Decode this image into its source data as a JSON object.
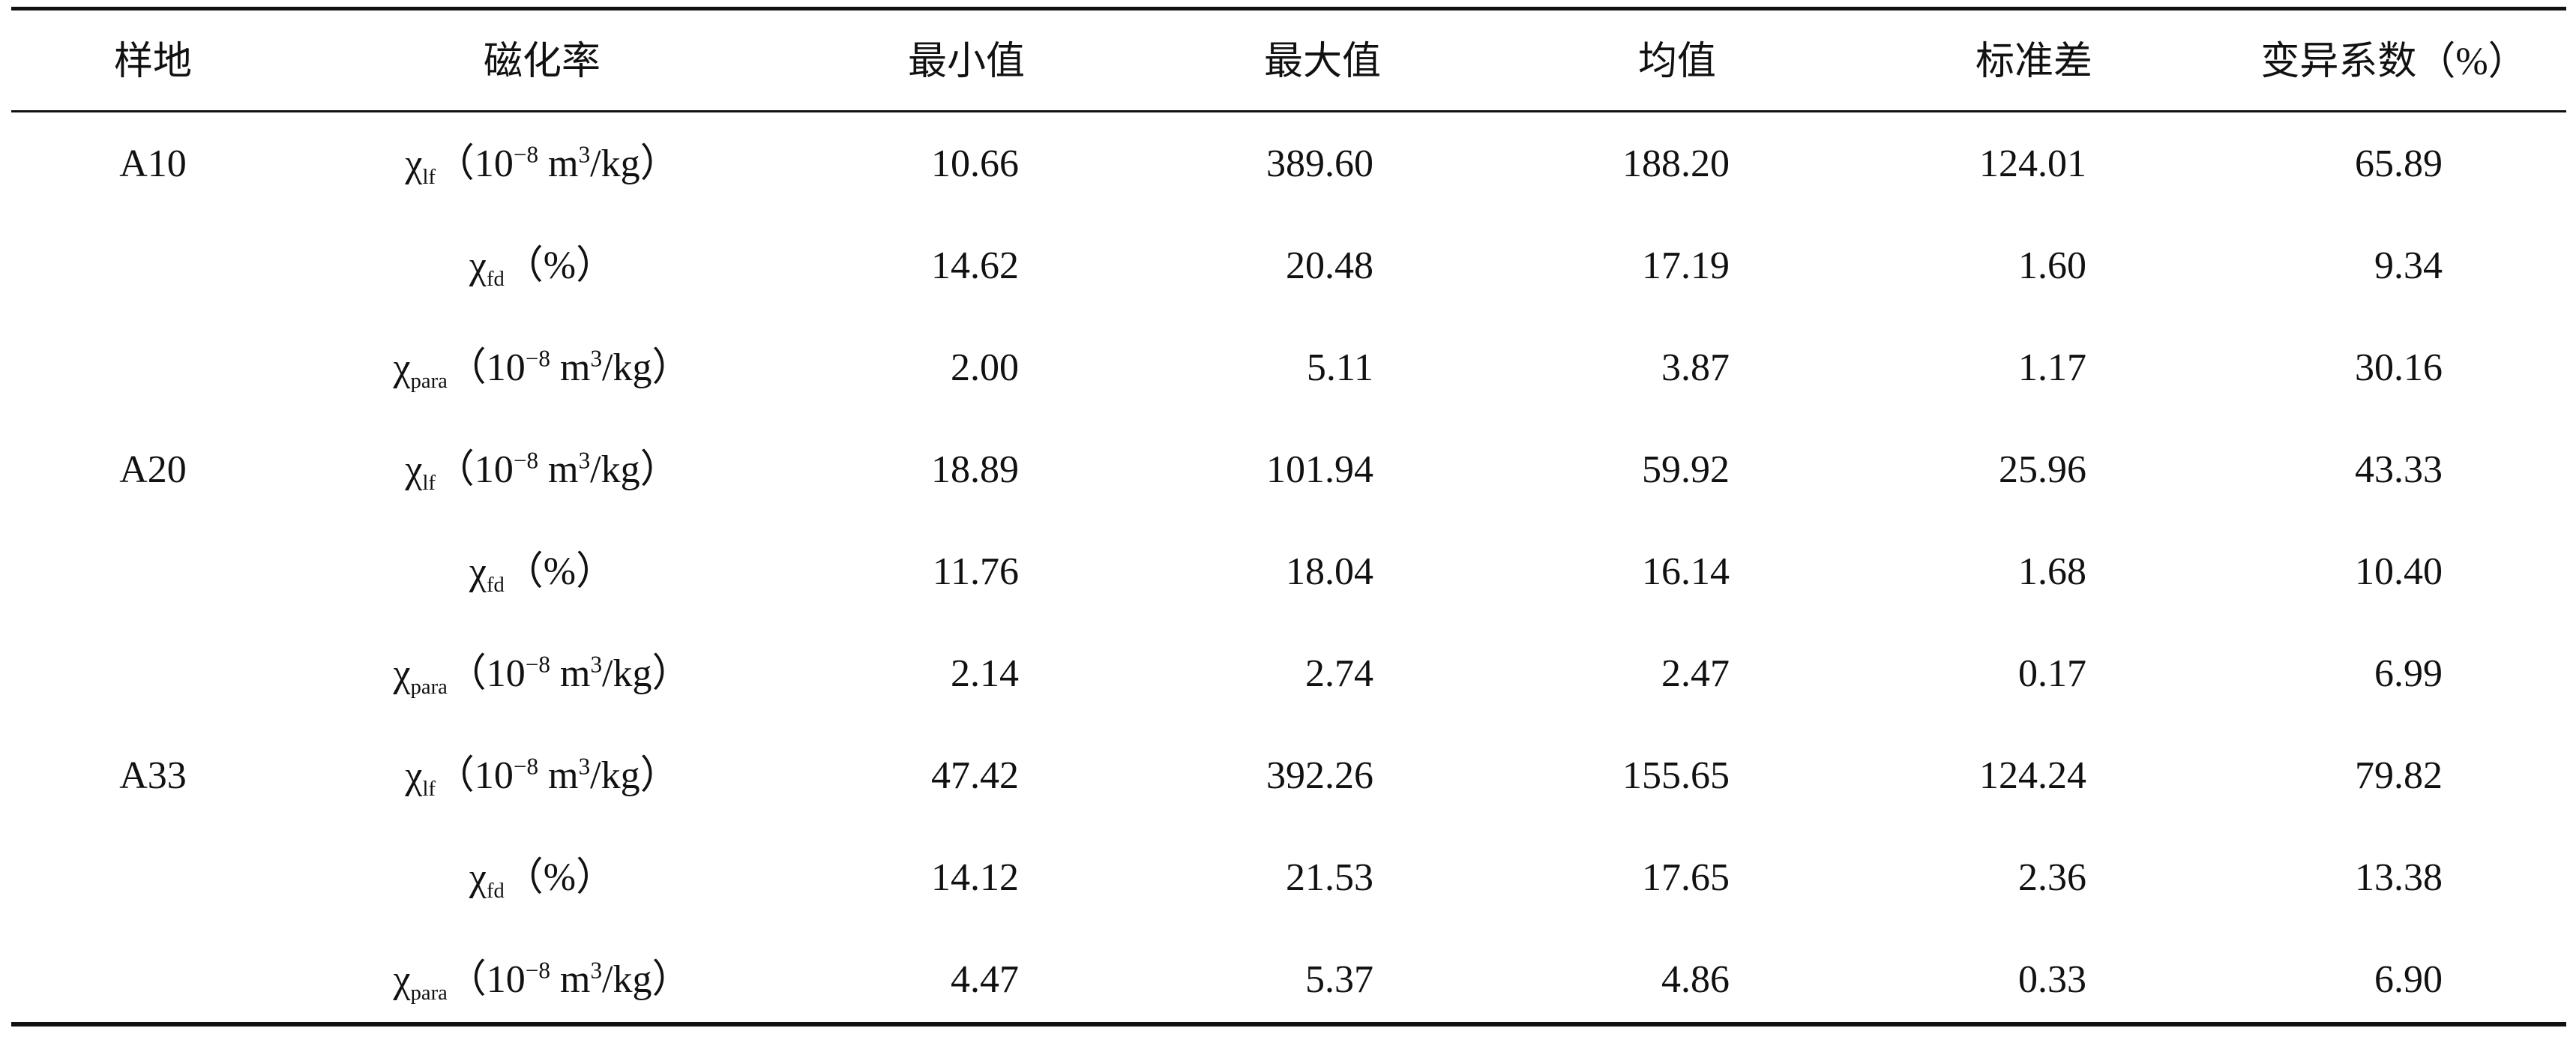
{
  "table": {
    "header": [
      "样地",
      "磁化率",
      "最小值",
      "最大值",
      "均值",
      "标准差",
      "变异系数（%）"
    ],
    "groups": [
      {
        "site": "A10",
        "rows": [
          {
            "susceptibility": {
              "symbol": "χ",
              "subscript": "lf",
              "unit": [
                "（10",
                {
                  "sup": "−8"
                },
                " m",
                {
                  "sup": "3"
                },
                "/kg）"
              ]
            },
            "values": [
              "10.66",
              "389.60",
              "188.20",
              "124.01",
              "65.89"
            ]
          },
          {
            "susceptibility": {
              "symbol": "χ",
              "subscript": "fd",
              "unit": [
                "（%）"
              ]
            },
            "values": [
              "14.62",
              "20.48",
              "17.19",
              "1.60",
              "9.34"
            ]
          },
          {
            "susceptibility": {
              "symbol": "χ",
              "subscript": "para",
              "unit": [
                "（10",
                {
                  "sup": "−8"
                },
                " m",
                {
                  "sup": "3"
                },
                "/kg）"
              ]
            },
            "values": [
              "2.00",
              "5.11",
              "3.87",
              "1.17",
              "30.16"
            ]
          }
        ]
      },
      {
        "site": "A20",
        "rows": [
          {
            "susceptibility": {
              "symbol": "χ",
              "subscript": "lf",
              "unit": [
                "（10",
                {
                  "sup": "−8"
                },
                " m",
                {
                  "sup": "3"
                },
                "/kg）"
              ]
            },
            "values": [
              "18.89",
              "101.94",
              "59.92",
              "25.96",
              "43.33"
            ]
          },
          {
            "susceptibility": {
              "symbol": "χ",
              "subscript": "fd",
              "unit": [
                "（%）"
              ]
            },
            "values": [
              "11.76",
              "18.04",
              "16.14",
              "1.68",
              "10.40"
            ]
          },
          {
            "susceptibility": {
              "symbol": "χ",
              "subscript": "para",
              "unit": [
                "（10",
                {
                  "sup": "−8"
                },
                " m",
                {
                  "sup": "3"
                },
                "/kg）"
              ]
            },
            "values": [
              "2.14",
              "2.74",
              "2.47",
              "0.17",
              "6.99"
            ]
          }
        ]
      },
      {
        "site": "A33",
        "rows": [
          {
            "susceptibility": {
              "symbol": "χ",
              "subscript": "lf",
              "unit": [
                "（10",
                {
                  "sup": "−8"
                },
                " m",
                {
                  "sup": "3"
                },
                "/kg）"
              ]
            },
            "values": [
              "47.42",
              "392.26",
              "155.65",
              "124.24",
              "79.82"
            ]
          },
          {
            "susceptibility": {
              "symbol": "χ",
              "subscript": "fd",
              "unit": [
                "（%）"
              ]
            },
            "values": [
              "14.12",
              "21.53",
              "17.65",
              "2.36",
              "13.38"
            ]
          },
          {
            "susceptibility": {
              "symbol": "χ",
              "subscript": "para",
              "unit": [
                "（10",
                {
                  "sup": "−8"
                },
                " m",
                {
                  "sup": "3"
                },
                "/kg）"
              ]
            },
            "values": [
              "4.47",
              "5.37",
              "4.86",
              "0.33",
              "6.90"
            ]
          }
        ]
      }
    ]
  }
}
